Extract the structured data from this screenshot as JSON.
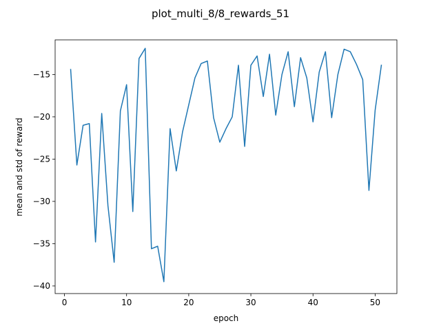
{
  "chart_data": {
    "type": "line",
    "title": "plot_multi_8/8_rewards_51",
    "xlabel": "epoch",
    "ylabel": "mean and std of reward",
    "xlim": [
      -1.5,
      53.5
    ],
    "ylim": [
      -40.9,
      -10.9
    ],
    "xticks": [
      0,
      10,
      20,
      30,
      40,
      50
    ],
    "yticks": [
      -40,
      -35,
      -30,
      -25,
      -20,
      -15
    ],
    "grid": false,
    "line_color": "#1f77b4",
    "series": [
      {
        "x": [
          1,
          2,
          3,
          4,
          5,
          6,
          7,
          8,
          9,
          10,
          11,
          12,
          13,
          14,
          15,
          16,
          17,
          18,
          19,
          20,
          21,
          22,
          23,
          24,
          25,
          26,
          27,
          28,
          29,
          30,
          31,
          32,
          33,
          34,
          35,
          36,
          37,
          38,
          39,
          40,
          41,
          42,
          43,
          44,
          45,
          46,
          47,
          48,
          49,
          50,
          51
        ],
        "values": [
          -14.4,
          -25.7,
          -21.0,
          -20.8,
          -34.8,
          -19.6,
          -30.5,
          -37.2,
          -19.3,
          -16.2,
          -31.2,
          -13.1,
          -11.9,
          -35.6,
          -35.3,
          -39.5,
          -21.4,
          -26.4,
          -21.8,
          -18.6,
          -15.4,
          -13.7,
          -13.4,
          -20.1,
          -23.0,
          -21.4,
          -20.0,
          -13.9,
          -23.5,
          -13.9,
          -12.8,
          -17.6,
          -12.6,
          -19.8,
          -15.0,
          -12.3,
          -18.8,
          -13.0,
          -15.4,
          -20.6,
          -14.7,
          -12.3,
          -20.1,
          -15.0,
          -12.0,
          -12.3,
          -13.8,
          -15.6,
          -28.7,
          -19.2,
          -13.9
        ]
      }
    ]
  }
}
